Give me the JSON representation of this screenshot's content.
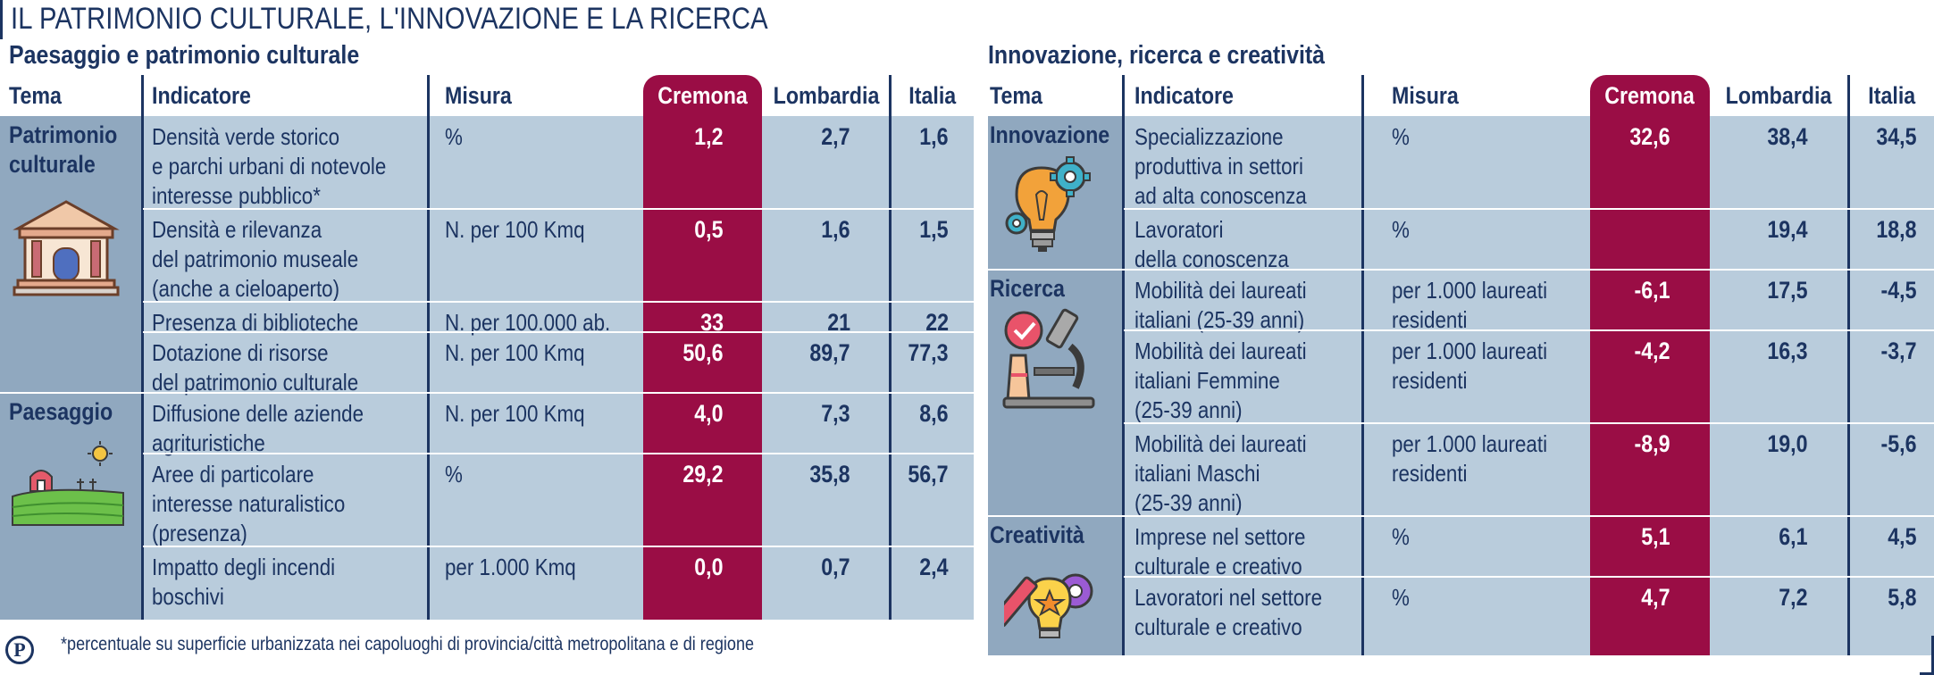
{
  "title": "IL PATRIMONIO CULTURALE, L'INNOVAZIONE E LA RICERCA",
  "headers": {
    "tema": "Tema",
    "indicatore": "Indicatore",
    "misura": "Misura",
    "cremona": "Cremona",
    "lombardia": "Lombardia",
    "italia": "Italia"
  },
  "colors": {
    "accent": "#9a0d45",
    "navy": "#1c3461",
    "row_light": "#b9ccdc",
    "theme_dark": "#90a8bf"
  },
  "left": {
    "title": "Paesaggio e patrimonio culturale",
    "themes": [
      {
        "name_lines": [
          "Patrimonio",
          "culturale"
        ],
        "icon": "museum-icon"
      },
      {
        "name_lines": [
          "Paesaggio"
        ],
        "icon": "farm-landscape-icon"
      }
    ],
    "rows": [
      {
        "indicatore": [
          "Densità verde storico",
          "e parchi urbani di notevole",
          "interesse pubblico*"
        ],
        "misura": [
          "%"
        ],
        "cremona": "1,2",
        "lombardia": "2,7",
        "italia": "1,6"
      },
      {
        "indicatore": [
          "Densità e rilevanza",
          "del patrimonio museale",
          "(anche a cieloaperto)"
        ],
        "misura": [
          "N. per 100 Kmq"
        ],
        "cremona": "0,5",
        "lombardia": "1,6",
        "italia": "1,5"
      },
      {
        "indicatore": [
          "Presenza di biblioteche"
        ],
        "misura": [
          "N. per 100.000 ab."
        ],
        "cremona": "33",
        "lombardia": "21",
        "italia": "22"
      },
      {
        "indicatore": [
          "Dotazione di risorse",
          "del patrimonio culturale"
        ],
        "misura": [
          "N. per 100 Kmq"
        ],
        "cremona": "50,6",
        "lombardia": "89,7",
        "italia": "77,3"
      },
      {
        "indicatore": [
          "Diffusione delle aziende",
          "agrituristiche"
        ],
        "misura": [
          "N. per 100 Kmq"
        ],
        "cremona": "4,0",
        "lombardia": "7,3",
        "italia": "8,6"
      },
      {
        "indicatore": [
          "Aree di particolare",
          "interesse naturalistico",
          "(presenza)"
        ],
        "misura": [
          "%"
        ],
        "cremona": "29,2",
        "lombardia": "35,8",
        "italia": "56,7"
      },
      {
        "indicatore": [
          "Impatto degli incendi",
          "boschivi"
        ],
        "misura": [
          "per 1.000 Kmq"
        ],
        "cremona": "0,0",
        "lombardia": "0,7",
        "italia": "2,4"
      }
    ]
  },
  "right": {
    "title": "Innovazione, ricerca e creatività",
    "themes": [
      {
        "name_lines": [
          "Innovazione"
        ],
        "icon": "lightbulb-gears-icon"
      },
      {
        "name_lines": [
          "Ricerca"
        ],
        "icon": "microscope-icon"
      },
      {
        "name_lines": [
          "Creatività"
        ],
        "icon": "creative-bulb-icon"
      }
    ],
    "rows": [
      {
        "indicatore": [
          "Specializzazione",
          "produttiva in settori",
          "ad alta conoscenza"
        ],
        "misura": [
          "%"
        ],
        "cremona": "32,6",
        "lombardia": "38,4",
        "italia": "34,5"
      },
      {
        "indicatore": [
          "Lavoratori",
          "della conoscenza"
        ],
        "misura": [
          "%"
        ],
        "cremona": "",
        "lombardia": "19,4",
        "italia": "18,8"
      },
      {
        "indicatore": [
          "Mobilità dei laureati",
          "italiani (25-39 anni)"
        ],
        "misura": [
          "per 1.000 laureati",
          "residenti"
        ],
        "cremona": "-6,1",
        "lombardia": "17,5",
        "italia": "-4,5"
      },
      {
        "indicatore": [
          "Mobilità dei laureati",
          "italiani Femmine",
          "(25-39 anni)"
        ],
        "misura": [
          "per 1.000 laureati",
          "residenti"
        ],
        "cremona": "-4,2",
        "lombardia": "16,3",
        "italia": "-3,7"
      },
      {
        "indicatore": [
          "Mobilità dei laureati",
          "italiani Maschi",
          "(25-39 anni)"
        ],
        "misura": [
          "per 1.000 laureati",
          "residenti"
        ],
        "cremona": "-8,9",
        "lombardia": "19,0",
        "italia": "-5,6"
      },
      {
        "indicatore": [
          "Imprese nel settore",
          "culturale e creativo"
        ],
        "misura": [
          "%"
        ],
        "cremona": "5,1",
        "lombardia": "6,1",
        "italia": "4,5"
      },
      {
        "indicatore": [
          "Lavoratori nel settore",
          "culturale e creativo"
        ],
        "misura": [
          "%"
        ],
        "cremona": "4,7",
        "lombardia": "7,2",
        "italia": "5,8"
      }
    ]
  },
  "footnote": "*percentuale su superficie urbanizzata nei capoluoghi di provincia/città metropolitana e di regione",
  "logo": "P"
}
